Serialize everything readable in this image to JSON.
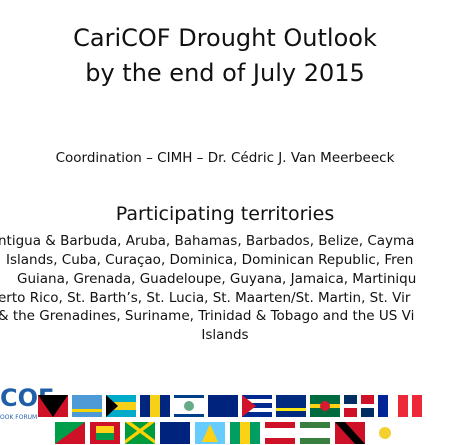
{
  "slide": {
    "title": [
      "CariCOF Drought Outlook",
      "by the end of July 2015"
    ],
    "coordination": "Coordination – CIMH – Dr. Cédric J. Van Meerbeeck",
    "heading": "Participating territories",
    "territories": [
      "ntigua & Barbuda, Aruba, Bahamas, Barbados, Belize, Cayma",
      "Islands, Cuba, Curaçao, Dominica, Dominican Republic, Fren",
      "Guiana, Grenada, Guadeloupe, Guyana, Jamaica, Martiniqu",
      "erto Rico, St. Barth’s, St. Lucia, St. Maarten/St. Martin, St. Vir",
      "& the Grenadines, Suriname, Trinidad & Tobago and the US Vi",
      "Islands"
    ],
    "logo": {
      "text": "COF",
      "subtext": "OOK FORUM"
    }
  }
}
